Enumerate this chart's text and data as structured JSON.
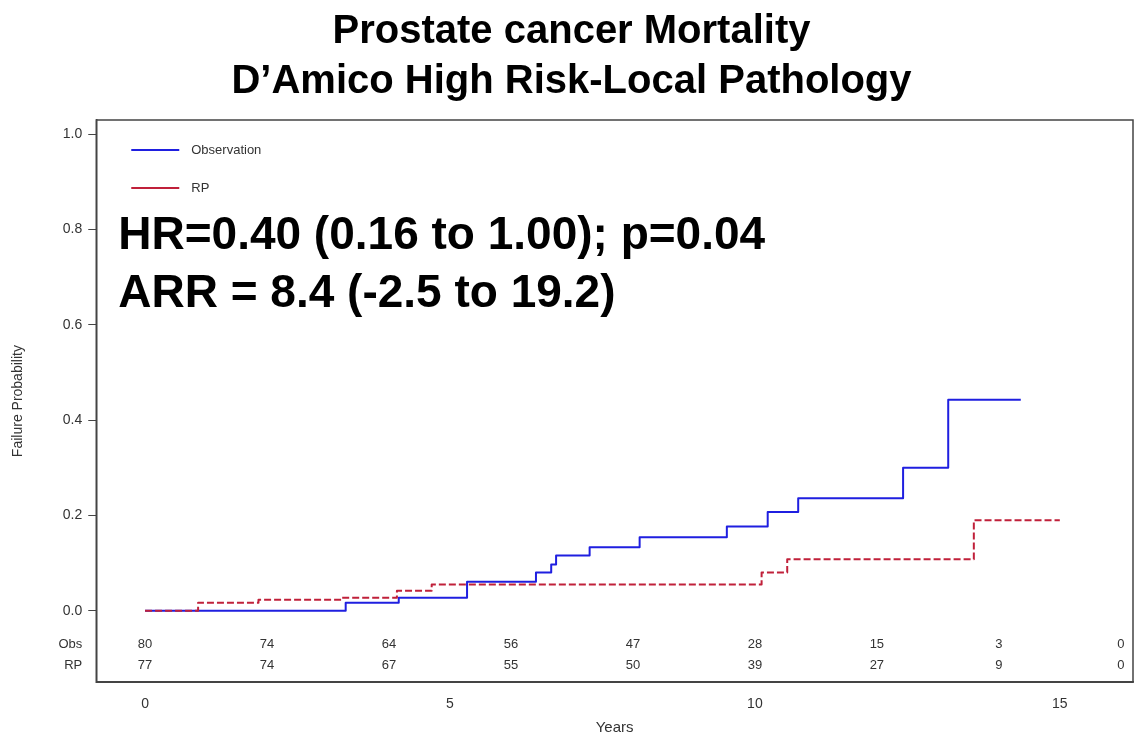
{
  "chart_data": {
    "type": "step",
    "title": "Prostate cancer Mortality",
    "subtitle": "D’Amico High Risk-Local Pathology",
    "xlabel": "Years",
    "ylabel": "Failure Probability",
    "xlim": [
      -0.8,
      16.2
    ],
    "xticks": [
      0,
      5,
      10,
      15
    ],
    "ylim": [
      -0.15,
      1.03
    ],
    "yticks": [
      {
        "value": 0,
        "label": "0.0"
      },
      0.2,
      0.4,
      0.6,
      0.8,
      {
        "value": 1,
        "label": "1.0"
      }
    ],
    "grid": false,
    "legend": "top left",
    "series": [
      {
        "name": "Observation",
        "color": "#1f1fe0",
        "line_style": "solid",
        "x": [
          0,
          3.29,
          4.16,
          5.28,
          6.41,
          6.66,
          6.74,
          7.29,
          8.11,
          9.54,
          10.21,
          10.71,
          12.43,
          13.17,
          14.36
        ],
        "values": [
          0,
          0.017,
          0.027,
          0.061,
          0.08,
          0.097,
          0.116,
          0.133,
          0.154,
          0.177,
          0.207,
          0.236,
          0.3,
          0.443,
          0.443
        ]
      },
      {
        "name": "RP",
        "color": "#c0203a",
        "line_style": "dashed",
        "x": [
          0,
          0.87,
          1.86,
          3.22,
          4.13,
          4.7,
          10.11,
          10.53,
          13.59,
          15.0
        ],
        "values": [
          0,
          0.017,
          0.023,
          0.027,
          0.042,
          0.055,
          0.08,
          0.108,
          0.19,
          0.19
        ]
      }
    ],
    "annotations": [
      "HR=0.40 (0.16 to 1.00); p=0.04",
      "ARR = 8.4 (-2.5 to 19.2)",
      "Obs",
      "80",
      "74",
      "64",
      "56",
      "47",
      "28",
      "15",
      "3",
      "0",
      "RP",
      "77",
      "74",
      "67",
      "55",
      "50",
      "39",
      "27",
      "9",
      "0"
    ]
  }
}
